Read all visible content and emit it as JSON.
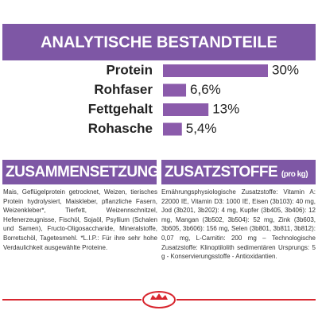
{
  "chart_data": {
    "type": "bar",
    "title": "ANALYTISCHE BESTANDTEILE",
    "categories": [
      "Protein",
      "Rohfaser",
      "Fettgehalt",
      "Rohasche"
    ],
    "values": [
      30,
      6.6,
      13,
      5.4
    ],
    "value_labels": [
      "30%",
      "6,6%",
      "13%",
      "5,4%"
    ],
    "color": "#8b5bab"
  },
  "composition": {
    "title": "ZUSAMMENSETZUNG",
    "text": "Mais, Geflügelprotein getrocknet, Weizen, tierisches Protein hydrolysiert, Maiskleber, pflanzliche Fasern, Weizenkleber*, Tierfett, Weizennschnitzel, Hefenerzeugnisse, Fischöl, Sojaöl, Psyllium (Schalen und Samen), Fructo-Oligosaccharide, Mineralstoffe, Borretschöl, Tagetesmehl. *L.I.P.: Für ihre sehr hohe Verdaulichkeit ausgewählte Proteine."
  },
  "additives": {
    "title": "ZUSATZSTOFFE",
    "unit": "(pro kg)",
    "text": "Ernährungsphysiologische Zusatzstoffe: Vitamin A: 22000 IE, Vitamin D3: 1000 IE, Eisen (3b103): 40 mg, Jod (3b201, 3b202): 4 mg, Kupfer (3b405, 3b406): 12 mg, Mangan (3b502, 3b504): 52 mg, Zink (3b603, 3b605, 3b606): 156 mg, Selen (3b801, 3b811, 3b812): 0,07 mg, L-Carnitin: 200 mg – Technologische Zusatzstoffe: Klinoptilolith sedimentären Ursprungs: 5 g - Konservierungsstoffe - Antioxidantien."
  }
}
